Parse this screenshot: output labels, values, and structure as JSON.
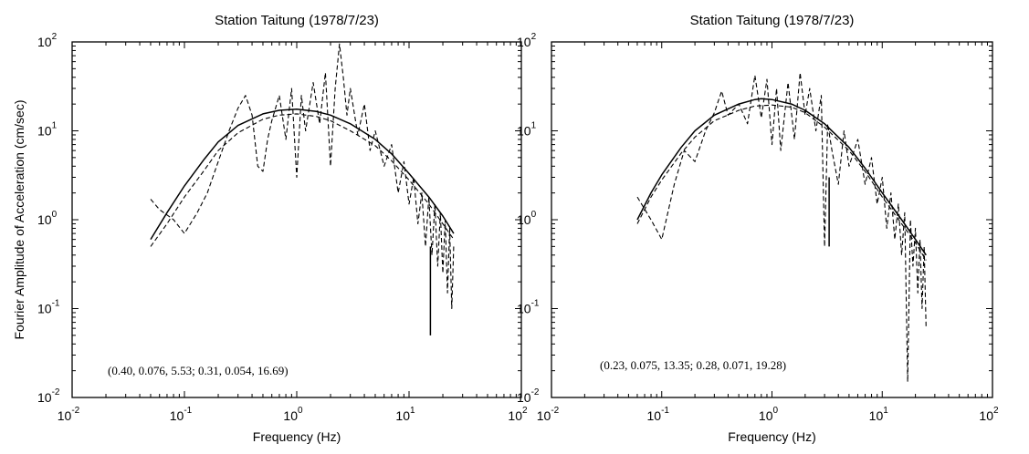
{
  "chart_data": [
    {
      "type": "line",
      "title": "Station Taitung (1978/7/23)",
      "xlabel": "Frequency (Hz)",
      "ylabel": "Fourier Amplitude of Acceleration (cm/sec)",
      "xscale": "log",
      "yscale": "log",
      "xlim": [
        0.01,
        100
      ],
      "ylim": [
        0.01,
        100
      ],
      "x_tick_labels": [
        {
          "base": "10",
          "exp": "-2"
        },
        {
          "base": "10",
          "exp": "-1"
        },
        {
          "base": "10",
          "exp": "0"
        },
        {
          "base": "10",
          "exp": "1"
        },
        {
          "base": "10",
          "exp": "2"
        }
      ],
      "y_tick_labels": [
        {
          "base": "10",
          "exp": "-2"
        },
        {
          "base": "10",
          "exp": "-1"
        },
        {
          "base": "10",
          "exp": "0"
        },
        {
          "base": "10",
          "exp": "1"
        },
        {
          "base": "10",
          "exp": "2"
        }
      ],
      "annotation": "(0.40, 0.076, 5.53; 0.31, 0.054, 16.69)",
      "grid": false,
      "series": [
        {
          "style": "solid",
          "x": [
            0.05,
            0.07,
            0.1,
            0.15,
            0.2,
            0.3,
            0.5,
            0.7,
            1.0,
            1.5,
            2.0,
            3.0,
            5.0,
            7.0,
            10,
            15,
            20,
            25
          ],
          "y": [
            0.6,
            1.2,
            2.4,
            4.8,
            7.5,
            11.5,
            15.5,
            17,
            17.5,
            16.5,
            15,
            12,
            8,
            5.5,
            3.3,
            1.8,
            1.1,
            0.7
          ]
        },
        {
          "style": "dashed",
          "x": [
            0.05,
            0.06,
            0.08,
            0.1,
            0.13,
            0.16,
            0.2,
            0.25,
            0.3,
            0.35,
            0.4,
            0.45,
            0.5,
            0.55,
            0.6,
            0.7,
            0.8,
            0.9,
            1.0,
            1.1,
            1.2,
            1.4,
            1.6,
            1.8,
            2.0,
            2.2,
            2.4,
            2.6,
            2.8,
            3.0,
            3.5,
            4.0,
            4.5,
            5.0,
            6.0,
            7.0,
            8.0,
            9.0,
            10,
            11,
            12,
            13,
            14,
            15,
            16,
            17,
            18,
            19,
            20,
            21,
            22,
            23,
            24,
            25
          ],
          "y": [
            1.7,
            1.3,
            1.0,
            0.7,
            1.2,
            2.0,
            4.5,
            10,
            18,
            25,
            15,
            4.0,
            3.5,
            8,
            13,
            25,
            8,
            30,
            3.0,
            25,
            10,
            35,
            12,
            45,
            4.0,
            30,
            95,
            40,
            15,
            30,
            9,
            20,
            6,
            10,
            4.0,
            7,
            2.0,
            4.5,
            1.5,
            3.0,
            0.9,
            2.0,
            0.5,
            1.8,
            0.4,
            1.5,
            0.3,
            1.2,
            0.25,
            1.0,
            0.15,
            0.8,
            0.1,
            0.5
          ]
        },
        {
          "style": "dashed",
          "x": [
            0.05,
            0.07,
            0.1,
            0.15,
            0.2,
            0.3,
            0.5,
            0.7,
            1.0,
            1.5,
            2.0,
            3.0,
            5.0,
            7.0,
            10,
            15,
            20,
            25
          ],
          "y": [
            0.5,
            0.9,
            1.8,
            3.6,
            6,
            9.5,
            13.5,
            15,
            15.5,
            14.5,
            13,
            10,
            6.8,
            4.6,
            2.8,
            1.5,
            0.9,
            0.6
          ]
        },
        {
          "style": "solid",
          "x": [
            15.5,
            15.5
          ],
          "y": [
            0.05,
            0.5
          ]
        }
      ]
    },
    {
      "type": "line",
      "title": "Station Taitung (1978/7/23)",
      "xlabel": "Frequency (Hz)",
      "ylabel": "",
      "xscale": "log",
      "yscale": "log",
      "xlim": [
        0.01,
        100
      ],
      "ylim": [
        0.01,
        100
      ],
      "x_tick_labels": [
        {
          "base": "10",
          "exp": "-2"
        },
        {
          "base": "10",
          "exp": "-1"
        },
        {
          "base": "10",
          "exp": "0"
        },
        {
          "base": "10",
          "exp": "1"
        },
        {
          "base": "10",
          "exp": "2"
        }
      ],
      "y_tick_labels": [
        {
          "base": "10",
          "exp": "-2"
        },
        {
          "base": "10",
          "exp": "-1"
        },
        {
          "base": "10",
          "exp": "0"
        },
        {
          "base": "10",
          "exp": "1"
        },
        {
          "base": "10",
          "exp": "2"
        }
      ],
      "annotation": "(0.23, 0.075, 13.35; 0.28, 0.071, 19.28)",
      "grid": false,
      "series": [
        {
          "style": "solid",
          "x": [
            0.06,
            0.08,
            0.1,
            0.15,
            0.2,
            0.3,
            0.5,
            0.7,
            0.8,
            1.0,
            1.5,
            2.0,
            3.0,
            5.0,
            7.0,
            10,
            15,
            20,
            25
          ],
          "y": [
            1.0,
            2.0,
            3.2,
            6.5,
            10,
            15,
            20,
            22.5,
            23,
            22.5,
            20,
            17,
            12,
            6.5,
            3.8,
            2.0,
            1.0,
            0.6,
            0.4
          ]
        },
        {
          "style": "dashed",
          "x": [
            0.06,
            0.08,
            0.1,
            0.13,
            0.16,
            0.2,
            0.25,
            0.3,
            0.35,
            0.4,
            0.5,
            0.6,
            0.7,
            0.8,
            0.9,
            1.0,
            1.1,
            1.2,
            1.4,
            1.6,
            1.8,
            2.0,
            2.2,
            2.5,
            2.8,
            3.0,
            3.2,
            3.5,
            4.0,
            4.5,
            5.0,
            6.0,
            7.0,
            8.0,
            9.0,
            10,
            11,
            12,
            13,
            14,
            15,
            16,
            17,
            18,
            19,
            20,
            21,
            22,
            23,
            24,
            25
          ],
          "y": [
            1.8,
            1.0,
            0.6,
            2.5,
            6,
            4.5,
            10,
            16,
            28,
            15,
            20,
            12,
            42,
            14,
            38,
            7,
            30,
            6,
            35,
            8,
            45,
            15,
            30,
            10,
            25,
            0.5,
            12,
            6,
            2.5,
            10,
            4,
            8,
            2.5,
            5,
            1.5,
            3.0,
            0.8,
            2.0,
            0.6,
            1.5,
            0.4,
            1.2,
            0.015,
            1.0,
            0.3,
            0.8,
            0.15,
            0.6,
            0.1,
            0.5,
            0.06
          ]
        },
        {
          "style": "dashed",
          "x": [
            0.06,
            0.08,
            0.1,
            0.15,
            0.2,
            0.3,
            0.5,
            0.7,
            1.0,
            1.5,
            2.0,
            3.0,
            5.0,
            7.0,
            10,
            15,
            20,
            25
          ],
          "y": [
            0.9,
            1.8,
            2.8,
            5.6,
            8.5,
            13,
            17,
            19,
            19.5,
            18.5,
            16,
            11,
            6,
            3.5,
            1.8,
            0.9,
            0.55,
            0.35
          ]
        },
        {
          "style": "solid",
          "x": [
            3.3,
            3.3
          ],
          "y": [
            0.5,
            3.0
          ]
        }
      ]
    }
  ]
}
